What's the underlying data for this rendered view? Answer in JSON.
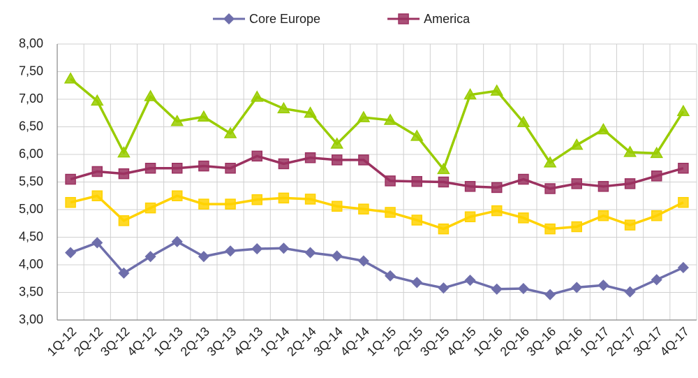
{
  "chart_data": {
    "type": "line",
    "categories": [
      "1Q-12",
      "2Q-12",
      "3Q-12",
      "4Q-12",
      "1Q-13",
      "2Q-13",
      "3Q-13",
      "4Q-13",
      "1Q-14",
      "2Q-14",
      "3Q-14",
      "4Q-14",
      "1Q-15",
      "2Q-15",
      "3Q-15",
      "4Q-15",
      "1Q-16",
      "2Q-16",
      "3Q-16",
      "4Q-16",
      "1Q-17",
      "2Q-17",
      "3Q-17",
      "4Q-17"
    ],
    "series": [
      {
        "name": "Core Europe",
        "color": "#6e6eab",
        "marker": "diamond",
        "values": [
          4.22,
          4.4,
          3.85,
          4.15,
          4.42,
          4.15,
          4.25,
          4.29,
          4.3,
          4.22,
          4.16,
          4.07,
          3.8,
          3.68,
          3.58,
          3.72,
          3.56,
          3.57,
          3.46,
          3.59,
          3.63,
          3.51,
          3.73,
          3.95
        ]
      },
      {
        "name": "America",
        "color": "#9b3160",
        "marker": "square",
        "values": [
          5.55,
          5.69,
          5.65,
          5.75,
          5.75,
          5.79,
          5.75,
          5.97,
          5.83,
          5.94,
          5.9,
          5.9,
          5.52,
          5.51,
          5.5,
          5.42,
          5.4,
          5.55,
          5.38,
          5.47,
          5.42,
          5.47,
          5.61,
          5.75
        ]
      },
      {
        "color": "#ffd200",
        "marker": "square",
        "values": [
          5.13,
          5.25,
          4.8,
          5.03,
          5.25,
          5.1,
          5.1,
          5.18,
          5.21,
          5.19,
          5.06,
          5.01,
          4.95,
          4.81,
          4.65,
          4.87,
          4.98,
          4.85,
          4.65,
          4.69,
          4.89,
          4.72,
          4.89,
          5.13
        ]
      },
      {
        "color": "#99cc00",
        "marker": "triangle",
        "values": [
          7.37,
          6.97,
          6.03,
          7.05,
          6.6,
          6.68,
          6.38,
          7.04,
          6.83,
          6.75,
          6.19,
          6.67,
          6.62,
          6.33,
          5.73,
          7.08,
          7.15,
          6.58,
          5.85,
          6.17,
          6.45,
          6.04,
          6.02,
          6.78
        ]
      }
    ],
    "ylim": [
      3,
      8
    ],
    "yticks": [
      {
        "value": 3,
        "label": "3,00"
      },
      {
        "value": 3.5,
        "label": "3,50"
      },
      {
        "value": 4,
        "label": "4,00"
      },
      {
        "value": 4.5,
        "label": "4,50"
      },
      {
        "value": 5,
        "label": "5,00"
      },
      {
        "value": 5.5,
        "label": "5,50"
      },
      {
        "value": 6,
        "label": "6,00"
      },
      {
        "value": 6.5,
        "label": "6,50"
      },
      {
        "value": 7,
        "label": "7,00"
      },
      {
        "value": 7.5,
        "label": "7,50"
      },
      {
        "value": 8,
        "label": "8,00"
      }
    ],
    "grid": true,
    "legend": "top"
  }
}
